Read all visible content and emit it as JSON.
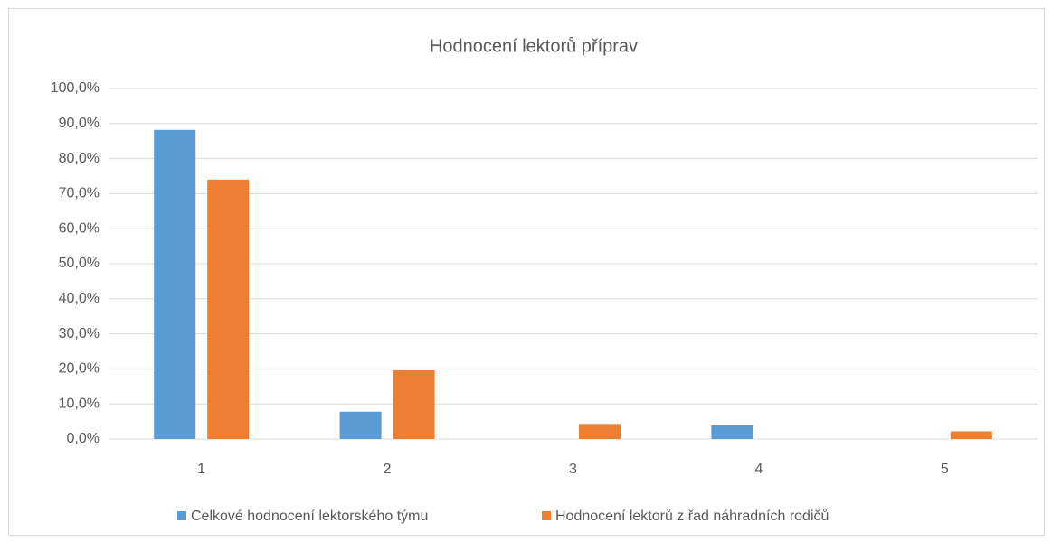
{
  "chart_data": {
    "type": "bar",
    "title": "Hodnocení lektorů příprav",
    "categories": [
      "1",
      "2",
      "3",
      "4",
      "5"
    ],
    "series": [
      {
        "name": "Celkové hodnocení lektorského týmu",
        "color": "#5b9bd5",
        "values": [
          88.2,
          7.8,
          0,
          3.9,
          0
        ]
      },
      {
        "name": "Hodnocení lektorů z řad náhradních rodičů",
        "color": "#ed7d31",
        "values": [
          74.0,
          19.6,
          4.3,
          0,
          2.2
        ]
      }
    ],
    "ylim": [
      0,
      100
    ],
    "yticks": [
      {
        "value": 0,
        "label": "0,0%"
      },
      {
        "value": 10,
        "label": "10,0%"
      },
      {
        "value": 20,
        "label": "20,0%"
      },
      {
        "value": 30,
        "label": "30,0%"
      },
      {
        "value": 40,
        "label": "40,0%"
      },
      {
        "value": 50,
        "label": "50,0%"
      },
      {
        "value": 60,
        "label": "60,0%"
      },
      {
        "value": 70,
        "label": "70,0%"
      },
      {
        "value": 80,
        "label": "80,0%"
      },
      {
        "value": 90,
        "label": "90,0%"
      },
      {
        "value": 100,
        "label": "100,0%"
      }
    ],
    "grid": true,
    "legend": "bottom"
  }
}
